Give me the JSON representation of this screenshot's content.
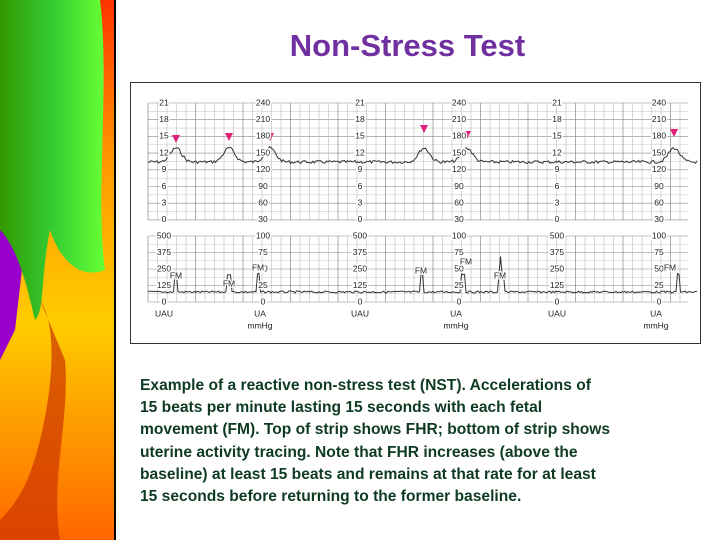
{
  "title": "Non-Stress Test",
  "strip": {
    "kpa_scale": [
      "21",
      "18",
      "15",
      "12",
      "9",
      "6",
      "3",
      "0"
    ],
    "fhr_scale": [
      "240",
      "210",
      "180",
      "150",
      "120",
      "90",
      "60",
      "30"
    ],
    "uau_scale": [
      "500",
      "375",
      "250",
      "125",
      "0"
    ],
    "ua_scale": [
      "100",
      "75",
      "50",
      "25",
      "0"
    ],
    "uau_label": "UAU",
    "ua_label": "UA",
    "unit_label": "mmHg",
    "fm_label": "FM"
  },
  "caption": [
    "Example of a reactive non-stress test (NST). Accelerations of",
    "15 beats per minute lasting 15 seconds with each fetal",
    "movement (FM). Top of strip shows FHR; bottom of strip shows",
    "uterine activity tracing. Note that FHR increases (above the",
    "baseline) at least 15 beats and remains at that rate for at least",
    "15 seconds before returning to the former baseline."
  ]
}
